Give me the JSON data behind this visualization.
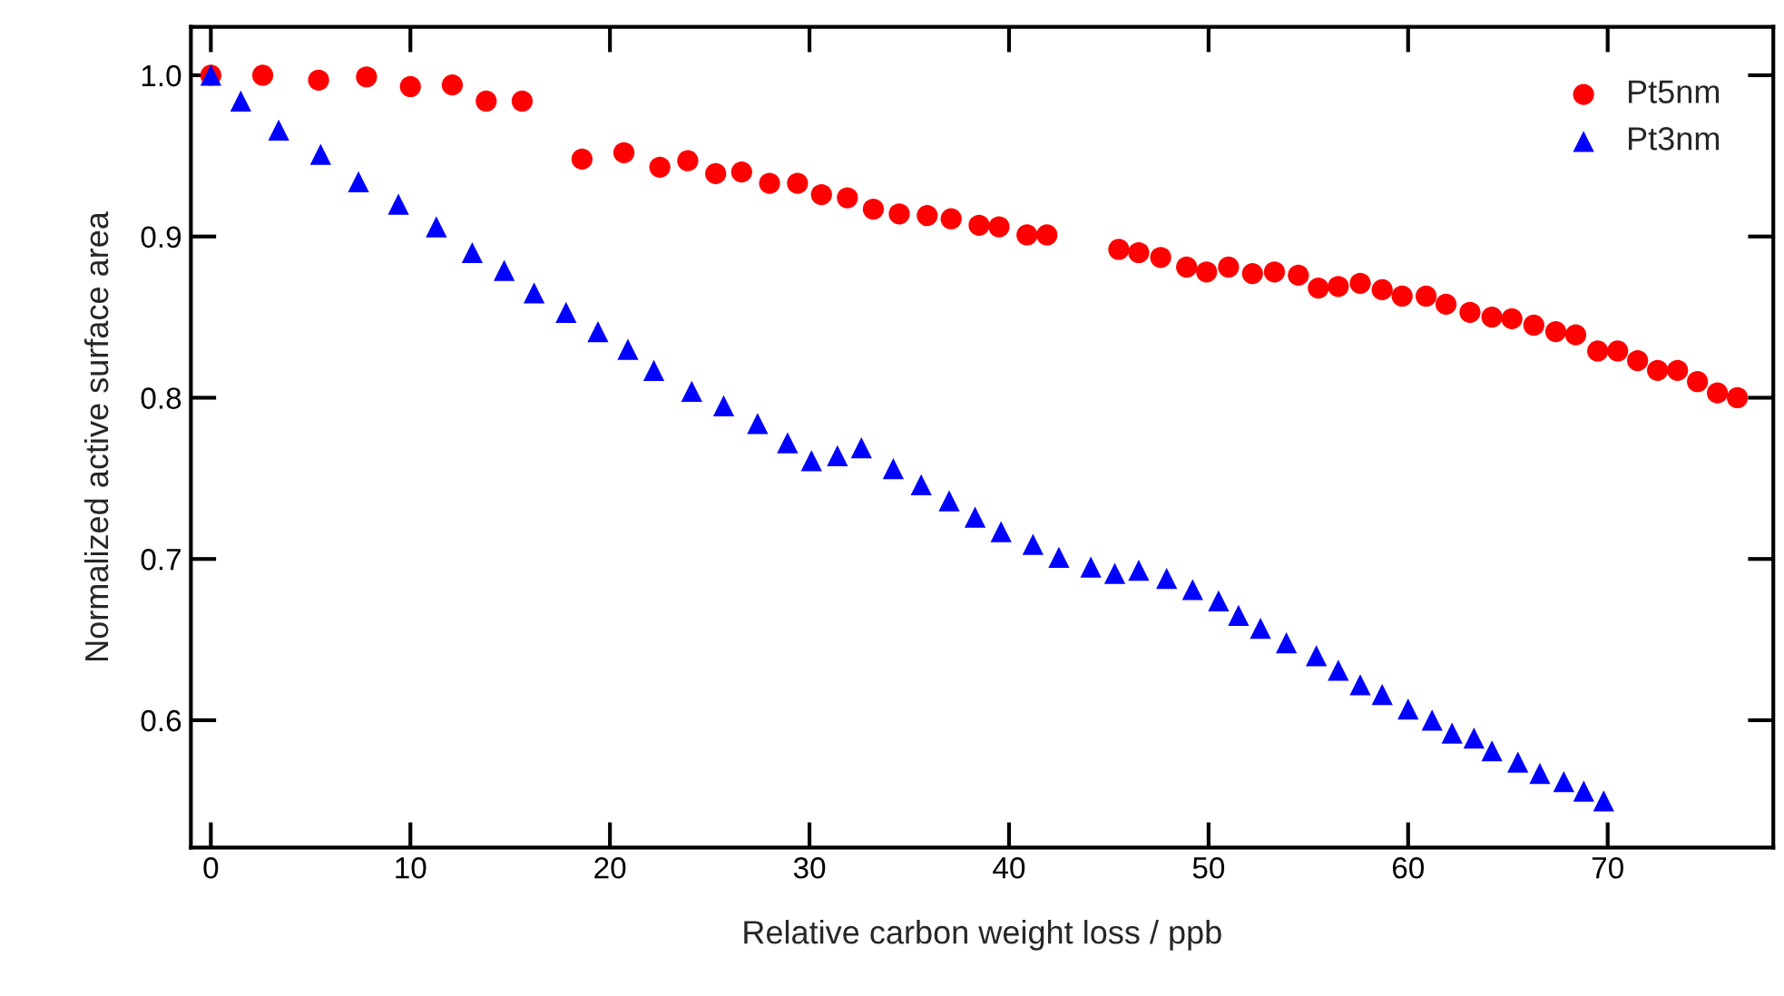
{
  "chart_data": {
    "type": "scatter",
    "xlabel": "Relative carbon weight loss / ppb",
    "ylabel": "Normalized active surface area",
    "xlim": [
      -1.0,
      78.3
    ],
    "ylim": [
      0.521,
      1.03
    ],
    "xticks": [
      0,
      10,
      20,
      30,
      40,
      50,
      60,
      70
    ],
    "yticks": [
      0.6,
      0.7,
      0.8,
      0.9,
      {
        "value": 1,
        "label": "1.0"
      }
    ],
    "grid": false,
    "legend": "top right",
    "series": [
      {
        "name": "Pt5nm",
        "color": "#ff0000",
        "marker": "circle",
        "x": [
          0,
          2.6,
          5.4,
          7.8,
          10.0,
          12.1,
          13.8,
          15.6,
          18.6,
          20.7,
          22.5,
          23.9,
          25.3,
          26.6,
          28.0,
          29.4,
          30.6,
          31.9,
          33.2,
          34.5,
          35.9,
          37.1,
          38.5,
          39.5,
          40.9,
          41.9,
          45.5,
          46.5,
          47.6,
          48.9,
          49.9,
          51.0,
          52.2,
          53.3,
          54.5,
          55.5,
          56.5,
          57.6,
          58.7,
          59.7,
          60.9,
          61.9,
          63.1,
          64.2,
          65.2,
          66.3,
          67.4,
          68.4,
          69.5,
          70.5,
          71.5,
          72.5,
          73.5,
          74.5,
          75.5,
          76.5
        ],
        "values": [
          1.0,
          1.0,
          0.997,
          0.999,
          0.993,
          0.994,
          0.984,
          0.984,
          0.948,
          0.952,
          0.943,
          0.947,
          0.939,
          0.94,
          0.933,
          0.933,
          0.926,
          0.924,
          0.917,
          0.914,
          0.913,
          0.911,
          0.907,
          0.906,
          0.901,
          0.901,
          0.892,
          0.89,
          0.887,
          0.881,
          0.878,
          0.881,
          0.877,
          0.878,
          0.876,
          0.868,
          0.869,
          0.871,
          0.867,
          0.863,
          0.863,
          0.858,
          0.853,
          0.85,
          0.849,
          0.845,
          0.841,
          0.839,
          0.829,
          0.829,
          0.823,
          0.817,
          0.817,
          0.81,
          0.803,
          0.8
        ]
      },
      {
        "name": "Pt3nm",
        "color": "#0000ff",
        "marker": "triangle",
        "x": [
          0,
          1.5,
          3.4,
          5.5,
          7.4,
          9.4,
          11.3,
          13.1,
          14.7,
          16.2,
          17.8,
          19.4,
          20.9,
          22.2,
          24.1,
          25.7,
          27.4,
          28.9,
          30.1,
          31.4,
          32.6,
          34.2,
          35.6,
          37.0,
          38.3,
          39.6,
          41.2,
          42.5,
          44.1,
          45.3,
          46.5,
          47.9,
          49.2,
          50.5,
          51.5,
          52.6,
          53.9,
          55.4,
          56.5,
          57.6,
          58.7,
          60.0,
          61.2,
          62.2,
          63.3,
          64.2,
          65.5,
          66.6,
          67.8,
          68.8,
          69.8
        ],
        "values": [
          1.0,
          0.984,
          0.966,
          0.951,
          0.934,
          0.92,
          0.906,
          0.89,
          0.879,
          0.865,
          0.853,
          0.841,
          0.83,
          0.817,
          0.804,
          0.795,
          0.784,
          0.772,
          0.761,
          0.764,
          0.769,
          0.756,
          0.746,
          0.736,
          0.726,
          0.717,
          0.709,
          0.701,
          0.695,
          0.691,
          0.693,
          0.688,
          0.681,
          0.674,
          0.665,
          0.657,
          0.648,
          0.64,
          0.631,
          0.622,
          0.616,
          0.607,
          0.6,
          0.592,
          0.589,
          0.581,
          0.574,
          0.567,
          0.562,
          0.556,
          0.55
        ]
      }
    ]
  }
}
